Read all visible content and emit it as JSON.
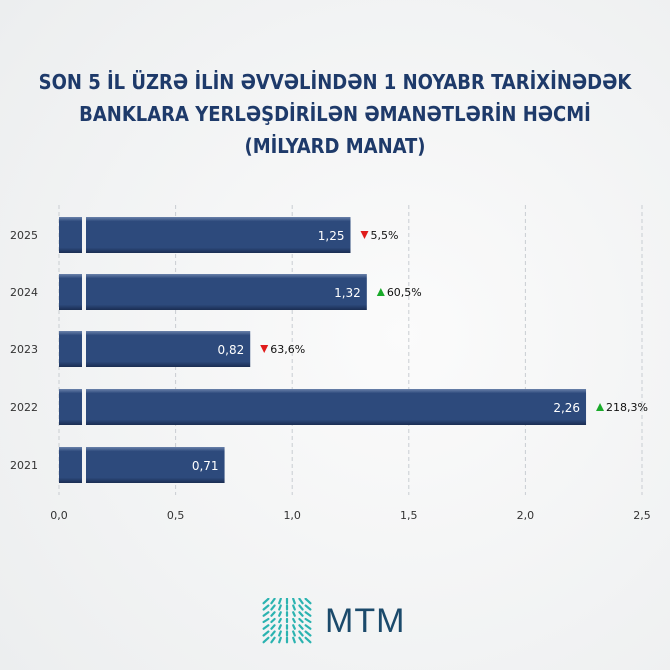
{
  "chart_data": {
    "type": "bar",
    "orientation": "horizontal",
    "title": [
      "SON 5 İL ÜZRƏ İLİN ƏVVƏLİNDƏN 1 NOYABR TARİXİNƏDƏK",
      "BANKLARA YERLƏŞDİRİLƏN ƏMANƏTLƏRİN HƏCMİ",
      "(MİLYARD MANAT)"
    ],
    "categories": [
      "2025",
      "2024",
      "2023",
      "2022",
      "2021"
    ],
    "values": [
      1.25,
      1.32,
      0.82,
      2.26,
      0.71
    ],
    "value_labels": [
      "1,25",
      "1,32",
      "0,82",
      "2,26",
      "0,71"
    ],
    "changes": [
      {
        "label": "5,5%",
        "direction": "down"
      },
      {
        "label": "60,5%",
        "direction": "up"
      },
      {
        "label": "63,6%",
        "direction": "down"
      },
      {
        "label": "218,3%",
        "direction": "up"
      },
      null
    ],
    "xlim": [
      0,
      2.5
    ],
    "xticks": [
      0,
      0.5,
      1.0,
      1.5,
      2.0,
      2.5
    ],
    "xtick_labels": [
      "0,0",
      "0,5",
      "1,0",
      "1,5",
      "2,0",
      "2,5"
    ],
    "grid": true,
    "colors": {
      "bar": "#2d4a7c",
      "up": "#1aaa2a",
      "down": "#e01b1b",
      "title": "#1e3a6a"
    }
  },
  "brand": {
    "name": "MTM"
  }
}
